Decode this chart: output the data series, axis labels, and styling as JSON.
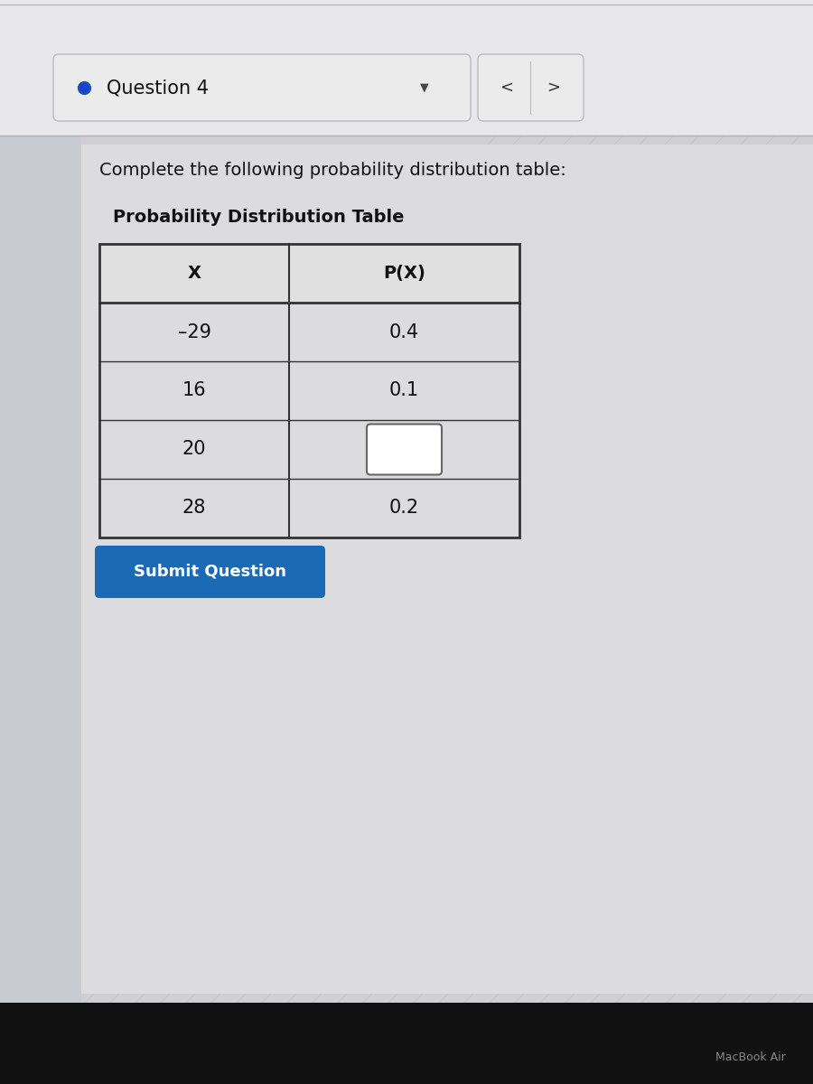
{
  "question_label": "Question 4",
  "instruction": "Complete the following probability distribution table:",
  "table_title": "Probability Distribution Table",
  "col_headers": [
    "X",
    "P(X)"
  ],
  "rows": [
    [
      "–29",
      "0.4"
    ],
    [
      "16",
      "0.1"
    ],
    [
      "20",
      ""
    ],
    [
      "28",
      "0.2"
    ]
  ],
  "empty_cell_row": 2,
  "submit_button_text": "Submit Question",
  "bg_color": "#d0d0d4",
  "top_bar_color": "#e8e8ea",
  "header_row_bg": "#e0e0e0",
  "header_text_color": "#111111",
  "data_row_bg": "#e8e8e8",
  "table_border_color": "#333333",
  "input_box_color": "#ffffff",
  "input_box_border": "#555555",
  "submit_btn_bg": "#1a6ab5",
  "submit_btn_text_color": "#ffffff",
  "question_box_bg": "#ebebeb",
  "question_box_border": "#bbbbbb",
  "nav_btn_bg": "#ebebeb",
  "nav_btn_border": "#bbbbbb",
  "macbook_text": "MacBook Air",
  "diag_line_color": "#bcbcbf",
  "title_fontsize": 14,
  "instruction_fontsize": 14,
  "table_title_fontsize": 14,
  "cell_fontsize": 14,
  "submit_fontsize": 13
}
